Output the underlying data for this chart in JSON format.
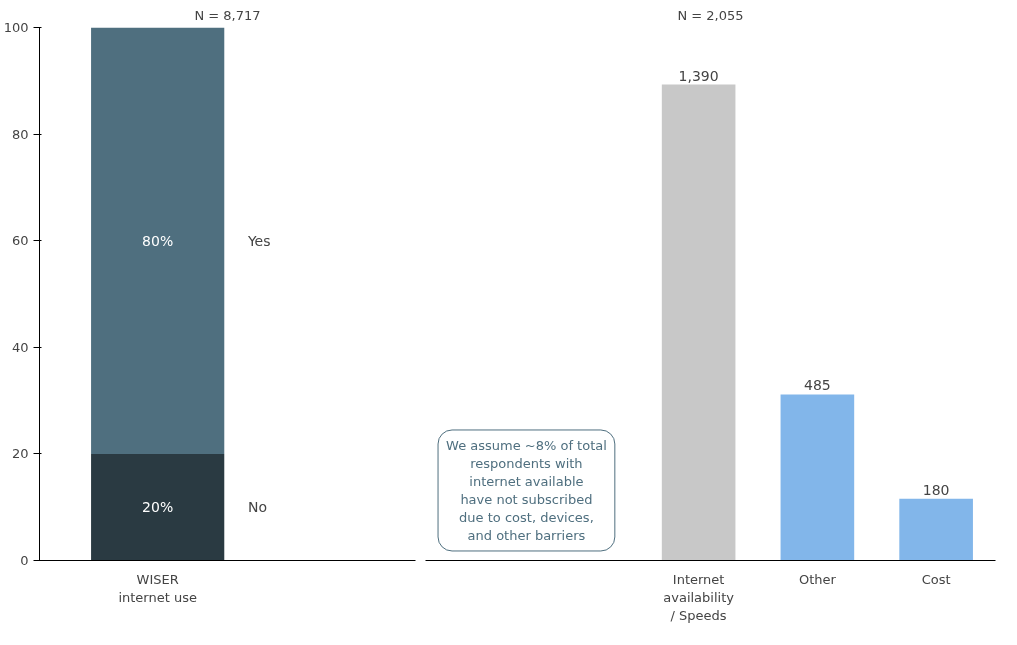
{
  "chart_data": [
    {
      "type": "bar",
      "title": "N = 8,717",
      "categories": [
        "WISER internet use"
      ],
      "stacked": true,
      "ylim": [
        0,
        100
      ],
      "yticks": [
        0,
        20,
        40,
        60,
        80,
        100
      ],
      "grid": false,
      "series": [
        {
          "name": "No",
          "color": "#2a3a42",
          "values": [
            20
          ],
          "value_labels": [
            "20%"
          ]
        },
        {
          "name": "Yes",
          "color": "#4f6f7f",
          "values": [
            80
          ],
          "value_labels": [
            "80%"
          ]
        }
      ]
    },
    {
      "type": "bar",
      "title": "N = 2,055",
      "categories": [
        "Internet availability / Speeds",
        "Other",
        "Cost"
      ],
      "values": [
        1390,
        485,
        180
      ],
      "value_labels": [
        "1,390",
        "485",
        "180"
      ],
      "colors": [
        "#c8c8c8",
        "#82b6ea",
        "#82b6ea"
      ],
      "tick_labels": "x",
      "grid": false,
      "annotations": [
        "We assume ~8% of total respondents with internet available have not subscribed due to cost, devices, and other barriers"
      ]
    }
  ]
}
